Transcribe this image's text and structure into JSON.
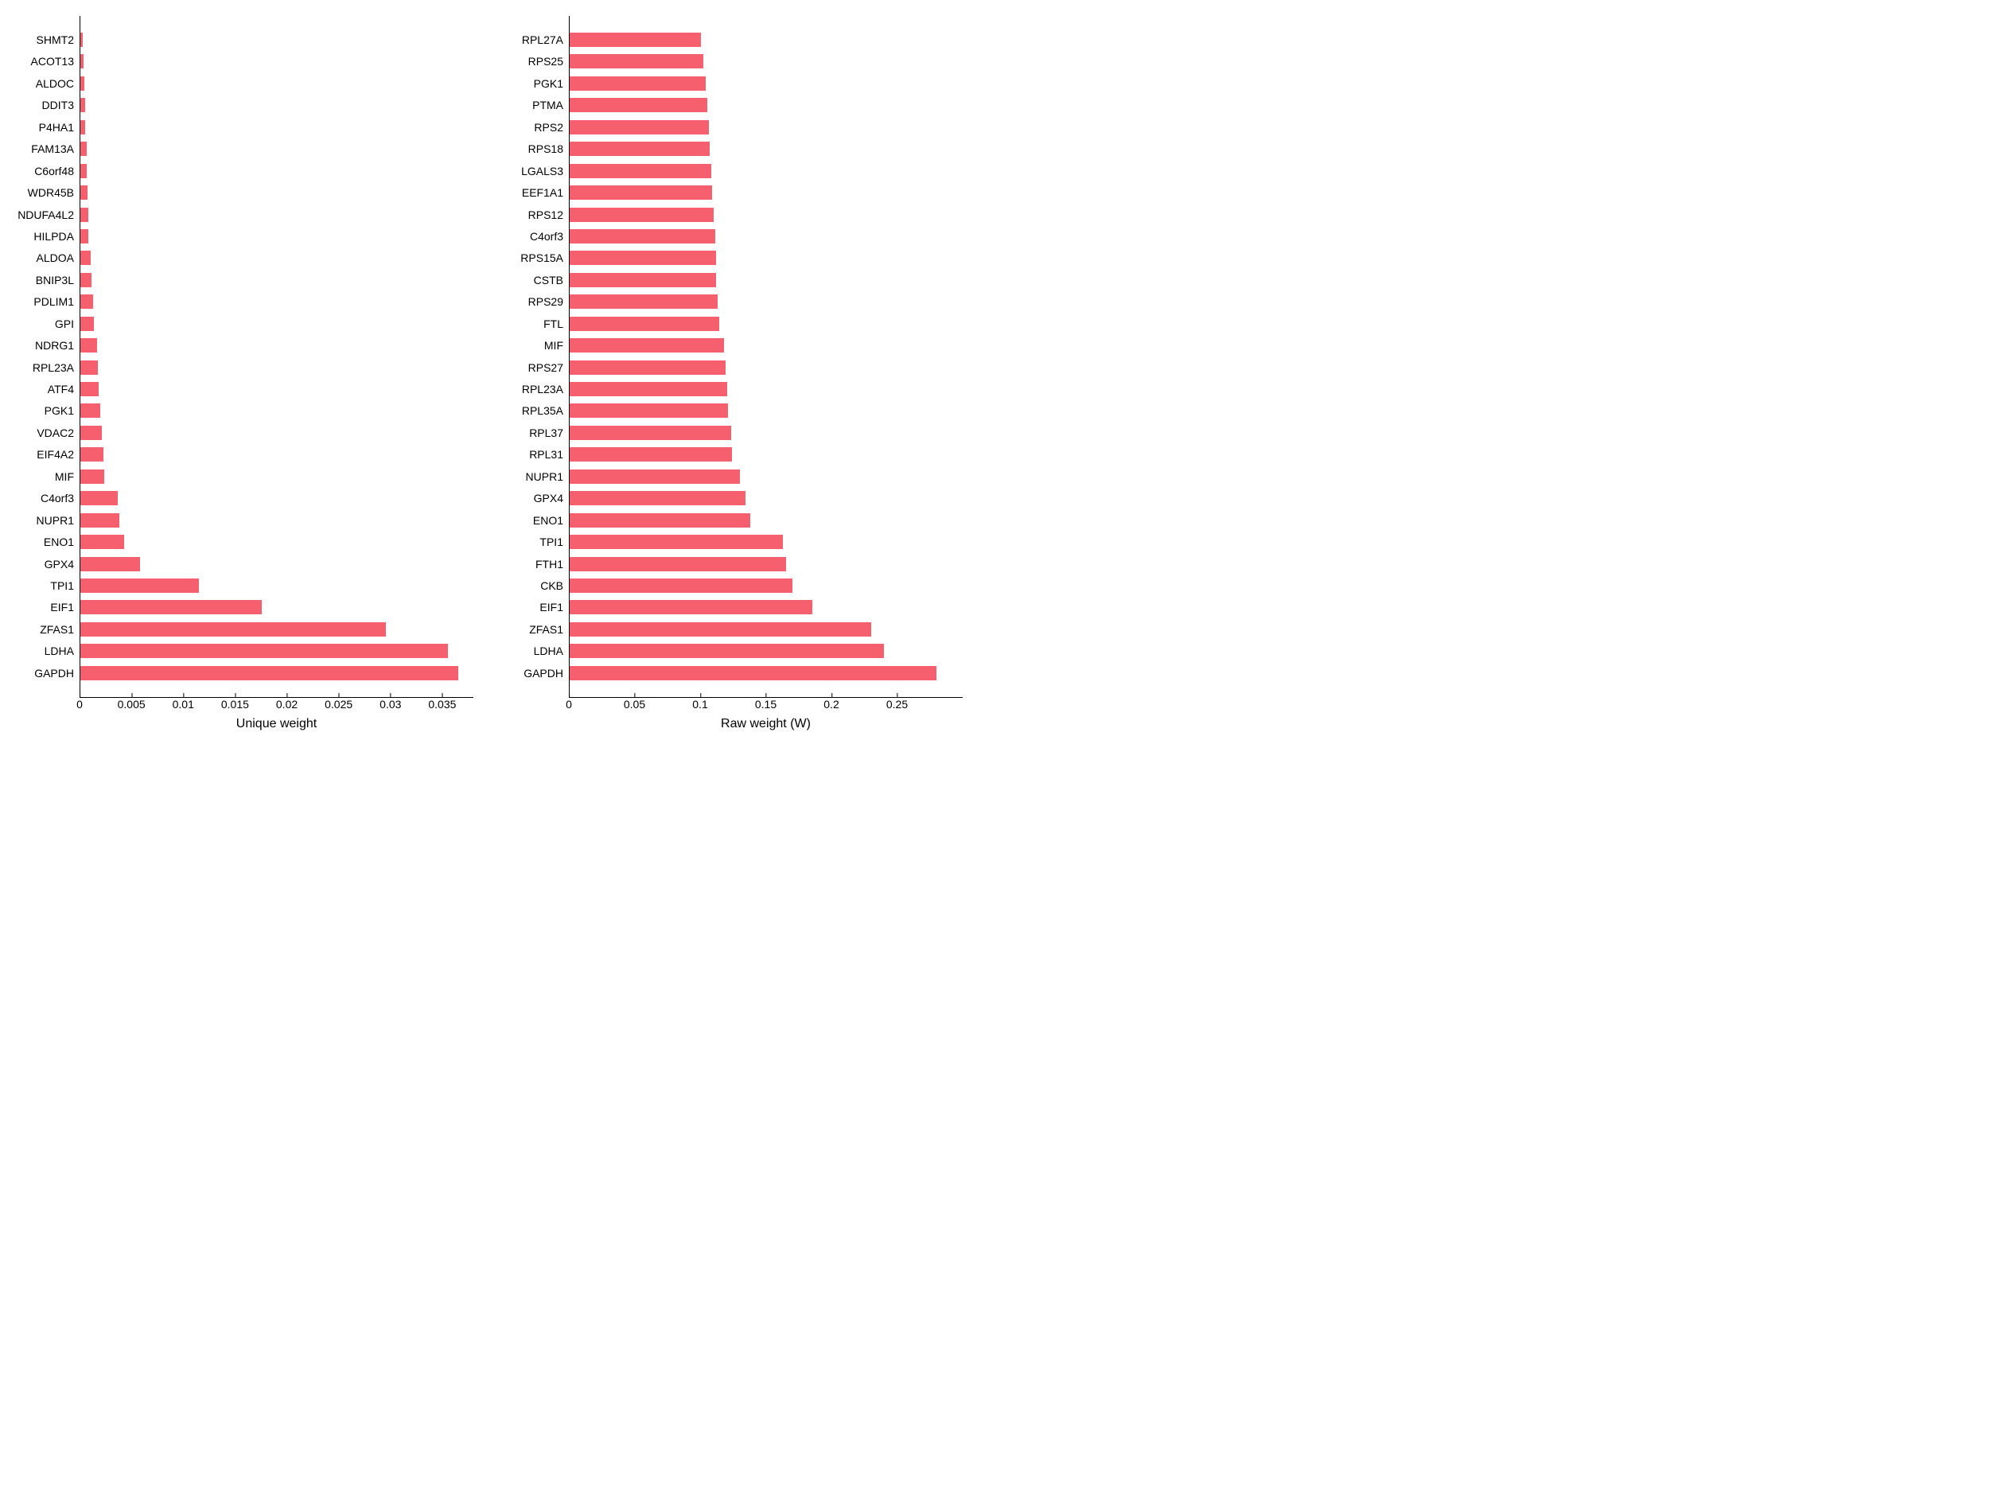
{
  "bar_color": "#f65f6e",
  "background_color": "#ffffff",
  "axis_color": "#000000",
  "label_fontsize": 14,
  "xlabel_fontsize": 16,
  "left_chart": {
    "type": "bar",
    "orientation": "horizontal",
    "xlabel": "Unique weight",
    "xmax": 0.038,
    "xticks": [
      0,
      0.005,
      0.01,
      0.015,
      0.02,
      0.025,
      0.03,
      0.035
    ],
    "xtick_labels": [
      "0",
      "0.005",
      "0.01",
      "0.015",
      "0.02",
      "0.025",
      "0.03",
      "0.035"
    ],
    "data": [
      {
        "label": "SHMT2",
        "value": 0.0002
      },
      {
        "label": "ACOT13",
        "value": 0.0003
      },
      {
        "label": "ALDOC",
        "value": 0.0004
      },
      {
        "label": "DDIT3",
        "value": 0.0005
      },
      {
        "label": "P4HA1",
        "value": 0.0005
      },
      {
        "label": "FAM13A",
        "value": 0.0006
      },
      {
        "label": "C6orf48",
        "value": 0.0006
      },
      {
        "label": "WDR45B",
        "value": 0.0007
      },
      {
        "label": "NDUFA4L2",
        "value": 0.0008
      },
      {
        "label": "HILPDA",
        "value": 0.0008
      },
      {
        "label": "ALDOA",
        "value": 0.001
      },
      {
        "label": "BNIP3L",
        "value": 0.0011
      },
      {
        "label": "PDLIM1",
        "value": 0.0012
      },
      {
        "label": "GPI",
        "value": 0.0013
      },
      {
        "label": "NDRG1",
        "value": 0.0016
      },
      {
        "label": "RPL23A",
        "value": 0.0017
      },
      {
        "label": "ATF4",
        "value": 0.0018
      },
      {
        "label": "PGK1",
        "value": 0.0019
      },
      {
        "label": "VDAC2",
        "value": 0.0021
      },
      {
        "label": "EIF4A2",
        "value": 0.0022
      },
      {
        "label": "MIF",
        "value": 0.0023
      },
      {
        "label": "C4orf3",
        "value": 0.0036
      },
      {
        "label": "NUPR1",
        "value": 0.0038
      },
      {
        "label": "ENO1",
        "value": 0.0042
      },
      {
        "label": "GPX4",
        "value": 0.0058
      },
      {
        "label": "TPI1",
        "value": 0.0115
      },
      {
        "label": "EIF1",
        "value": 0.0175
      },
      {
        "label": "ZFAS1",
        "value": 0.0295
      },
      {
        "label": "LDHA",
        "value": 0.0355
      },
      {
        "label": "GAPDH",
        "value": 0.0365
      }
    ]
  },
  "right_chart": {
    "type": "bar",
    "orientation": "horizontal",
    "xlabel": "Raw weight (W)",
    "xmax": 0.3,
    "xticks": [
      0,
      0.05,
      0.1,
      0.15,
      0.2,
      0.25
    ],
    "xtick_labels": [
      "0",
      "0.05",
      "0.1",
      "0.15",
      "0.2",
      "0.25"
    ],
    "data": [
      {
        "label": "RPL27A",
        "value": 0.1
      },
      {
        "label": "RPS25",
        "value": 0.102
      },
      {
        "label": "PGK1",
        "value": 0.104
      },
      {
        "label": "PTMA",
        "value": 0.105
      },
      {
        "label": "RPS2",
        "value": 0.106
      },
      {
        "label": "RPS18",
        "value": 0.107
      },
      {
        "label": "LGALS3",
        "value": 0.108
      },
      {
        "label": "EEF1A1",
        "value": 0.109
      },
      {
        "label": "RPS12",
        "value": 0.11
      },
      {
        "label": "C4orf3",
        "value": 0.111
      },
      {
        "label": "RPS15A",
        "value": 0.112
      },
      {
        "label": "CSTB",
        "value": 0.112
      },
      {
        "label": "RPS29",
        "value": 0.113
      },
      {
        "label": "FTL",
        "value": 0.114
      },
      {
        "label": "MIF",
        "value": 0.118
      },
      {
        "label": "RPS27",
        "value": 0.119
      },
      {
        "label": "RPL23A",
        "value": 0.12
      },
      {
        "label": "RPL35A",
        "value": 0.121
      },
      {
        "label": "RPL37",
        "value": 0.123
      },
      {
        "label": "RPL31",
        "value": 0.124
      },
      {
        "label": "NUPR1",
        "value": 0.13
      },
      {
        "label": "GPX4",
        "value": 0.134
      },
      {
        "label": "ENO1",
        "value": 0.138
      },
      {
        "label": "TPI1",
        "value": 0.163
      },
      {
        "label": "FTH1",
        "value": 0.165
      },
      {
        "label": "CKB",
        "value": 0.17
      },
      {
        "label": "EIF1",
        "value": 0.185
      },
      {
        "label": "ZFAS1",
        "value": 0.23
      },
      {
        "label": "LDHA",
        "value": 0.24
      },
      {
        "label": "GAPDH",
        "value": 0.28
      }
    ]
  }
}
